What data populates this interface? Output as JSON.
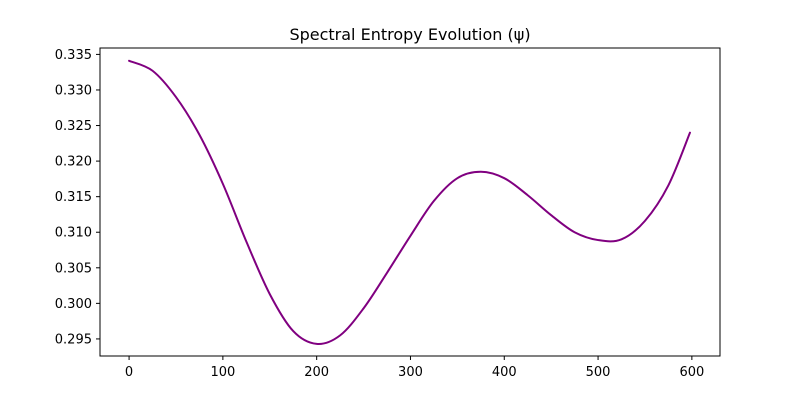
{
  "chart_data": {
    "type": "line",
    "title": "Spectral Entropy Evolution (ψ)",
    "xlabel": "",
    "ylabel": "",
    "xlim": [
      -31,
      630
    ],
    "ylim": [
      0.2926,
      0.3359
    ],
    "xticks": [
      0,
      100,
      200,
      300,
      400,
      500,
      600
    ],
    "yticks": [
      0.295,
      0.3,
      0.305,
      0.31,
      0.315,
      0.32,
      0.325,
      0.33,
      0.335
    ],
    "xtick_labels": [
      "0",
      "100",
      "200",
      "300",
      "400",
      "500",
      "600"
    ],
    "ytick_labels": [
      "0.295",
      "0.300",
      "0.305",
      "0.310",
      "0.315",
      "0.320",
      "0.325",
      "0.330",
      "0.335"
    ],
    "grid": false,
    "legend": "none",
    "colors": {
      "line": "#800080"
    },
    "series": [
      {
        "x": [
          0,
          25,
          50,
          75,
          100,
          125,
          150,
          175,
          200,
          225,
          250,
          275,
          300,
          325,
          350,
          375,
          400,
          425,
          450,
          475,
          500,
          525,
          550,
          575,
          598
        ],
        "values": [
          0.3341,
          0.3327,
          0.329,
          0.3237,
          0.3168,
          0.3087,
          0.3013,
          0.2961,
          0.2943,
          0.2955,
          0.2993,
          0.3043,
          0.3095,
          0.3144,
          0.3176,
          0.3185,
          0.3176,
          0.3152,
          0.3124,
          0.31,
          0.3089,
          0.309,
          0.3116,
          0.3166,
          0.324
        ]
      }
    ]
  }
}
